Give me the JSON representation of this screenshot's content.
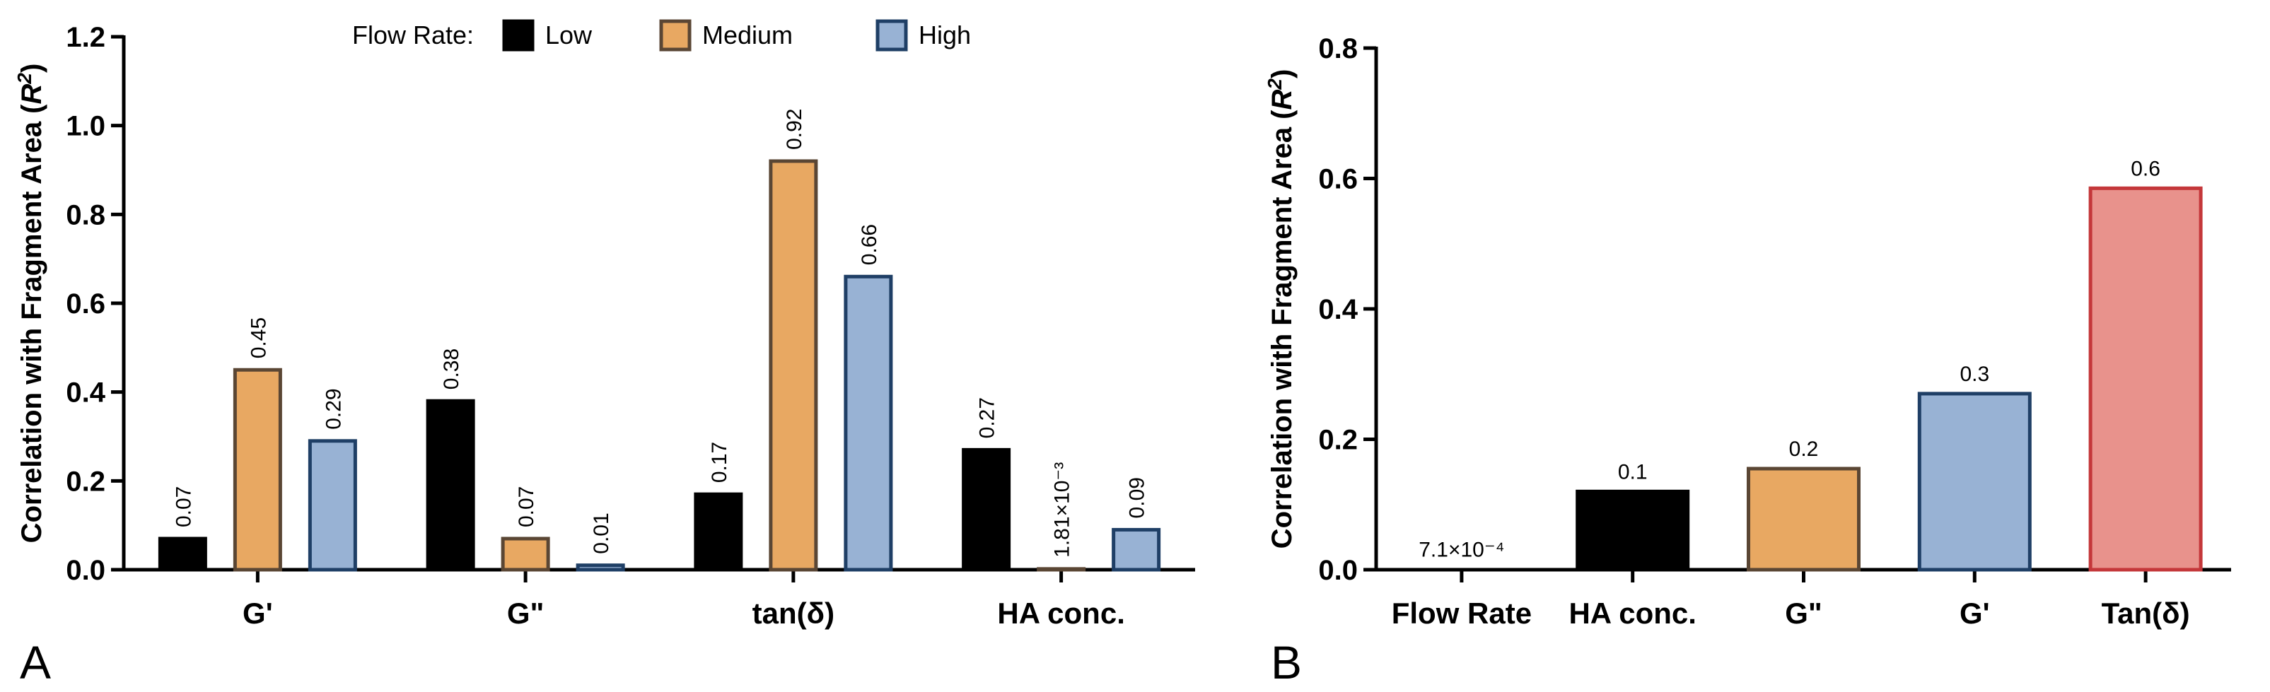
{
  "chart_data": [
    {
      "panel": "A",
      "type": "bar",
      "ylabel": "Correlation with Fragment Area (R²)",
      "ylim": [
        0,
        1.2
      ],
      "yticks": [
        "0.0",
        "0.2",
        "0.4",
        "0.6",
        "0.8",
        "1.0",
        "1.2"
      ],
      "categories": [
        "G'",
        "G\"",
        "tan(δ)",
        "HA conc."
      ],
      "legend_title": "Flow Rate:",
      "legend_position": "top",
      "series": [
        {
          "name": "Low",
          "values": [
            0.07,
            0.38,
            0.17,
            0.27
          ],
          "labels": [
            "0.07",
            "0.38",
            "0.17",
            "0.27"
          ],
          "color": "#000000",
          "stroke": "#000000"
        },
        {
          "name": "Medium",
          "values": [
            0.45,
            0.07,
            0.92,
            0.00181
          ],
          "labels": [
            "0.45",
            "0.07",
            "0.92",
            "1.81×10⁻³"
          ],
          "color": "#E8A862",
          "stroke": "#5a4634"
        },
        {
          "name": "High",
          "values": [
            0.29,
            0.01,
            0.66,
            0.09
          ],
          "labels": [
            "0.29",
            "0.01",
            "0.66",
            "0.09"
          ],
          "color": "#98B2D4",
          "stroke": "#1f3f66"
        }
      ]
    },
    {
      "panel": "B",
      "type": "bar",
      "ylabel": "Correlation with Fragment Area (R²)",
      "ylim": [
        0,
        0.8
      ],
      "yticks": [
        "0.0",
        "0.2",
        "0.4",
        "0.6",
        "0.8"
      ],
      "categories": [
        "Flow Rate",
        "HA conc.",
        "G\"",
        "G'",
        "Tan(δ)"
      ],
      "values": [
        0.00071,
        0.12,
        0.155,
        0.27,
        0.585
      ],
      "labels": [
        "7.1×10⁻⁴",
        "0.1",
        "0.2",
        "0.3",
        "0.6"
      ],
      "colors": [
        "#000000",
        "#000000",
        "#E8A862",
        "#98B2D4",
        "#E8928C"
      ],
      "strokes": [
        "#000000",
        "#000000",
        "#5a4634",
        "#1f3f66",
        "#c4373a"
      ]
    }
  ]
}
